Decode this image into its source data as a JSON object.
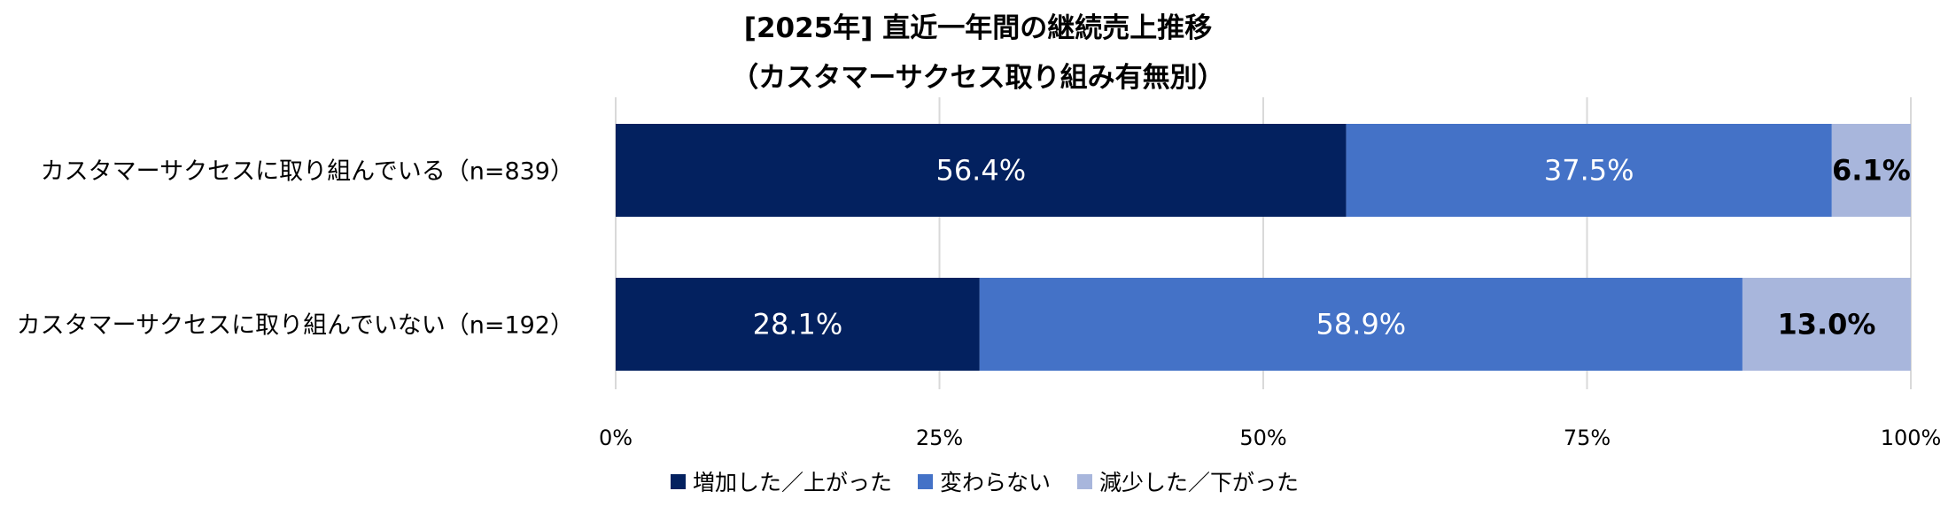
{
  "chart_data": {
    "type": "bar",
    "orientation": "horizontal",
    "stacked": true,
    "title": "[2025年] 直近一年間の継続売上推移",
    "subtitle": "（カスタマーサクセス取り組み有無別）",
    "categories": [
      "カスタマーサクセスに取り組んでいる（n=839）",
      "カスタマーサクセスに取り組んでいない（n=192）"
    ],
    "series": [
      {
        "name": "増加した／上がった",
        "color": "#03215f",
        "values": [
          56.4,
          28.1
        ],
        "labels": [
          "56.4%",
          "28.1%"
        ],
        "label_color": "#ffffff"
      },
      {
        "name": "変わらない",
        "color": "#4472c7",
        "values": [
          37.5,
          58.9
        ],
        "labels": [
          "37.5%",
          "58.9%"
        ],
        "label_color": "#ffffff"
      },
      {
        "name": "減少した／下がった",
        "color": "#a8b6dc",
        "values": [
          6.1,
          13.0
        ],
        "labels": [
          "6.1%",
          "13.0%"
        ],
        "label_color": "#000000"
      }
    ],
    "xlim": [
      0,
      100
    ],
    "xticks": [
      0,
      25,
      50,
      75,
      100
    ],
    "xtick_labels": [
      "0%",
      "25%",
      "50%",
      "75%",
      "100%"
    ],
    "grid": "vertical",
    "legend": "bottom"
  }
}
